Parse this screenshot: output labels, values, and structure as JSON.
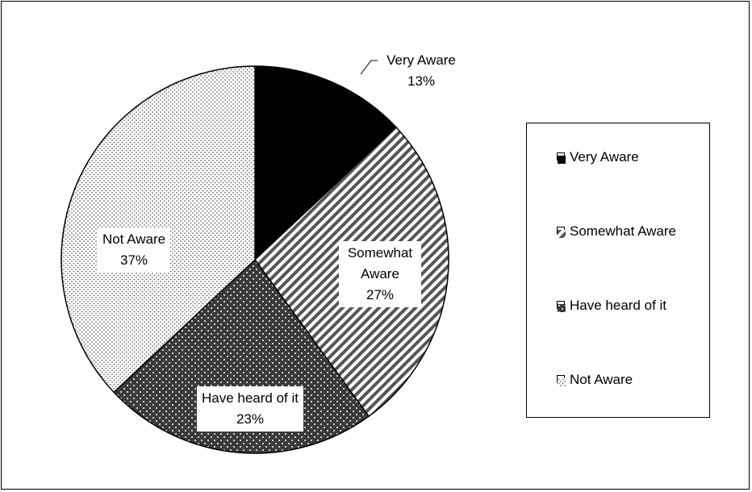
{
  "chart_data": {
    "type": "pie",
    "categories": [
      "Very Aware",
      "Somewhat Aware",
      "Have heard of it",
      "Not Aware"
    ],
    "values": [
      13,
      27,
      23,
      37
    ],
    "value_labels": [
      "13%",
      "27%",
      "23%",
      "37%"
    ]
  }
}
